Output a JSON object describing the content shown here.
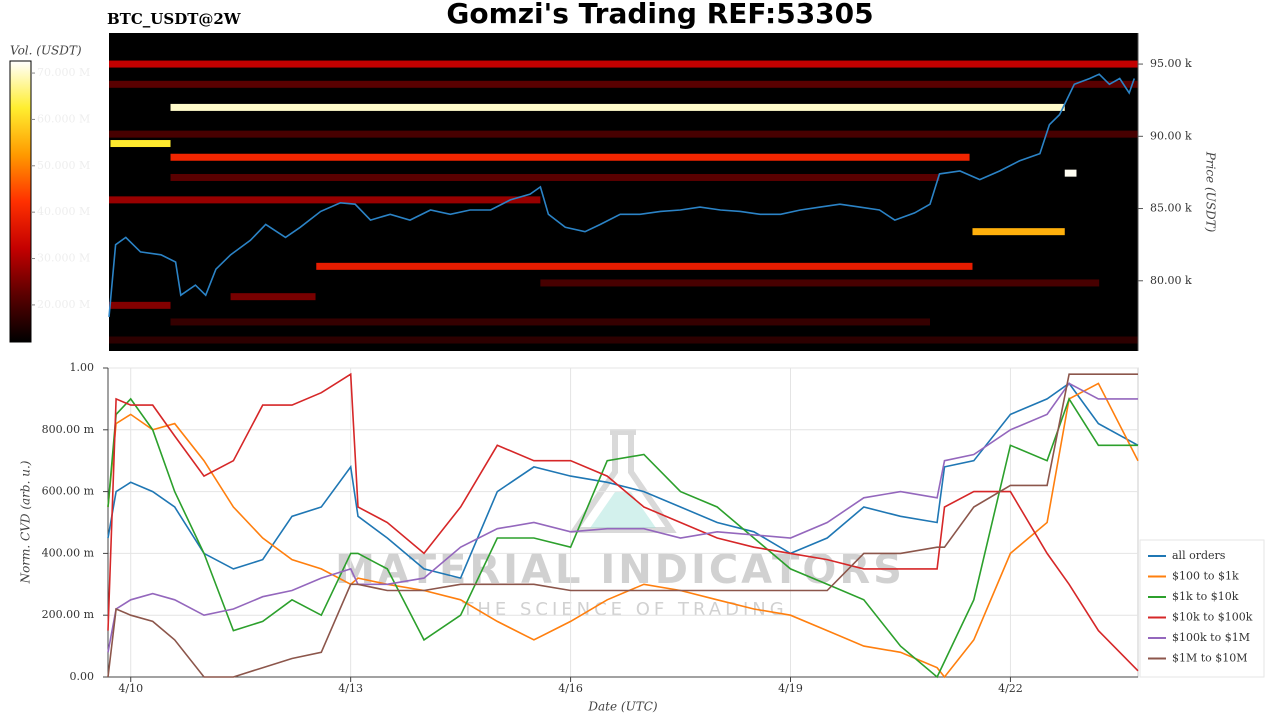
{
  "header": {
    "symbol": "BTC_USDT@2W",
    "title": "Gomzi's Trading REF:53305"
  },
  "watermark": {
    "brand": "MATERIAL INDICATORS",
    "tagline": "THE SCIENCE OF TRADING"
  },
  "chart_data": [
    {
      "type": "heatmap",
      "y_label": "Price (USDT)",
      "xlim": [
        9.69,
        23.74
      ],
      "ylim": [
        75140,
        97150
      ],
      "yticks": [
        {
          "value": 80000,
          "label": "80.00 k"
        },
        {
          "value": 85000,
          "label": "85.00 k"
        },
        {
          "value": 90000,
          "label": "90.00 k"
        },
        {
          "value": 95000,
          "label": "95.00 k"
        }
      ],
      "colorbar": {
        "label": "Vol. (USDT)",
        "clim": [
          12000000,
          72600000
        ],
        "ticks": [
          {
            "value": 20000000,
            "label": "20.000 M"
          },
          {
            "value": 30000000,
            "label": "30.000 M"
          },
          {
            "value": 40000000,
            "label": "40.000 M"
          },
          {
            "value": 50000000,
            "label": "50.000 M"
          },
          {
            "value": 60000000,
            "label": "60.000 M"
          },
          {
            "value": 70000000,
            "label": "70.000 M"
          }
        ],
        "colorscale": [
          "#000000",
          "#5a0000",
          "#c40000",
          "#ff3000",
          "#ff9a00",
          "#ffee30",
          "#ffffff"
        ]
      },
      "bands": [
        {
          "x0": 9.71,
          "x1": 10.53,
          "price": 89500,
          "volume": 62000000
        },
        {
          "x0": 10.53,
          "x1": 22.74,
          "price": 92000,
          "volume": 70000000
        },
        {
          "x0": 10.53,
          "x1": 21.44,
          "price": 88550,
          "volume": 40000000
        },
        {
          "x0": 12.52,
          "x1": 21.48,
          "price": 81000,
          "volume": 38000000
        },
        {
          "x0": 21.48,
          "x1": 22.74,
          "price": 83400,
          "volume": 55000000
        },
        {
          "x0": 22.74,
          "x1": 22.9,
          "price": 87450,
          "volume": 72000000
        },
        {
          "x0": 9.69,
          "x1": 23.74,
          "price": 95000,
          "volume": 32000000
        },
        {
          "x0": 9.69,
          "x1": 23.74,
          "price": 93600,
          "volume": 22000000
        },
        {
          "x0": 9.69,
          "x1": 15.58,
          "price": 85600,
          "volume": 28000000
        },
        {
          "x0": 11.35,
          "x1": 12.51,
          "price": 78900,
          "volume": 25000000
        },
        {
          "x0": 9.69,
          "x1": 10.53,
          "price": 78300,
          "volume": 26000000
        },
        {
          "x0": 9.69,
          "x1": 23.74,
          "price": 90150,
          "volume": 20000000
        },
        {
          "x0": 10.53,
          "x1": 21.03,
          "price": 87150,
          "volume": 22000000
        },
        {
          "x0": 10.53,
          "x1": 20.9,
          "price": 77150,
          "volume": 18000000
        },
        {
          "x0": 9.69,
          "x1": 23.74,
          "price": 75900,
          "volume": 17000000
        },
        {
          "x0": 15.58,
          "x1": 23.21,
          "price": 79850,
          "volume": 20000000
        }
      ],
      "price_line": {
        "color": "#2b83c6",
        "x": [
          9.69,
          9.78,
          9.92,
          10.12,
          10.4,
          10.6,
          10.67,
          10.87,
          11.01,
          11.15,
          11.35,
          11.62,
          11.83,
          12.1,
          12.3,
          12.58,
          12.85,
          13.05,
          13.26,
          13.53,
          13.8,
          14.08,
          14.35,
          14.62,
          14.9,
          15.17,
          15.44,
          15.58,
          15.69,
          15.92,
          16.19,
          16.4,
          16.67,
          16.94,
          17.22,
          17.49,
          17.76,
          18.04,
          18.31,
          18.58,
          18.86,
          19.13,
          19.4,
          19.67,
          19.94,
          20.21,
          20.42,
          20.69,
          20.9,
          21.03,
          21.31,
          21.58,
          21.85,
          22.12,
          22.4,
          22.53,
          22.67,
          22.87,
          23.08,
          23.21,
          23.35,
          23.49,
          23.62,
          23.69
        ],
        "values": [
          77500,
          82500,
          83000,
          82000,
          81800,
          81300,
          79000,
          79700,
          79000,
          80800,
          81800,
          82800,
          83900,
          83000,
          83700,
          84800,
          85400,
          85300,
          84200,
          84600,
          84200,
          84900,
          84600,
          84900,
          84900,
          85600,
          86000,
          86500,
          84600,
          83700,
          83400,
          83900,
          84600,
          84600,
          84800,
          84900,
          85100,
          84900,
          84800,
          84600,
          84600,
          84900,
          85100,
          85300,
          85100,
          84900,
          84200,
          84700,
          85300,
          87400,
          87600,
          87000,
          87600,
          88300,
          88800,
          90800,
          91500,
          93600,
          94000,
          94300,
          93600,
          94000,
          93000,
          94000
        ]
      }
    },
    {
      "type": "line",
      "x_label": "Date (UTC)",
      "y_label": "Norm. CVD (arb. u.)",
      "xlim": [
        9.69,
        23.74
      ],
      "ylim": [
        0,
        1
      ],
      "xticks": [
        {
          "value": 10,
          "label": "4/10"
        },
        {
          "value": 13,
          "label": "4/13"
        },
        {
          "value": 16,
          "label": "4/16"
        },
        {
          "value": 19,
          "label": "4/19"
        },
        {
          "value": 22,
          "label": "4/22"
        }
      ],
      "yticks": [
        {
          "value": 0,
          "label": "0.00"
        },
        {
          "value": 0.2,
          "label": "200.00 m"
        },
        {
          "value": 0.4,
          "label": "400.00 m"
        },
        {
          "value": 0.6,
          "label": "600.00 m"
        },
        {
          "value": 0.8,
          "label": "800.00 m"
        },
        {
          "value": 1,
          "label": "1.00"
        }
      ],
      "grid": true,
      "legend": "lower right",
      "x": [
        9.69,
        9.8,
        10.0,
        10.3,
        10.6,
        11.0,
        11.4,
        11.8,
        12.2,
        12.6,
        13.0,
        13.1,
        13.5,
        14.0,
        14.5,
        15.0,
        15.5,
        16.0,
        16.5,
        17.0,
        17.5,
        18.0,
        18.5,
        19.0,
        19.5,
        20.0,
        20.5,
        21.0,
        21.1,
        21.5,
        22.0,
        22.5,
        22.8,
        23.2,
        23.74
      ],
      "series": [
        {
          "name": "all orders",
          "color": "#1f77b4",
          "values": [
            0.45,
            0.6,
            0.63,
            0.6,
            0.55,
            0.4,
            0.35,
            0.38,
            0.52,
            0.55,
            0.68,
            0.52,
            0.45,
            0.35,
            0.32,
            0.6,
            0.68,
            0.65,
            0.63,
            0.6,
            0.55,
            0.5,
            0.47,
            0.4,
            0.45,
            0.55,
            0.52,
            0.5,
            0.68,
            0.7,
            0.85,
            0.9,
            0.95,
            0.82,
            0.75
          ]
        },
        {
          "name": "$100 to $1k",
          "color": "#ff7f0e",
          "values": [
            0.55,
            0.82,
            0.85,
            0.8,
            0.82,
            0.7,
            0.55,
            0.45,
            0.38,
            0.35,
            0.3,
            0.32,
            0.3,
            0.28,
            0.25,
            0.18,
            0.12,
            0.18,
            0.25,
            0.3,
            0.28,
            0.25,
            0.22,
            0.2,
            0.15,
            0.1,
            0.08,
            0.03,
            0.0,
            0.12,
            0.4,
            0.5,
            0.9,
            0.95,
            0.7
          ]
        },
        {
          "name": "$1k to $10k",
          "color": "#2ca02c",
          "values": [
            0.55,
            0.85,
            0.9,
            0.8,
            0.6,
            0.4,
            0.15,
            0.18,
            0.25,
            0.2,
            0.4,
            0.4,
            0.35,
            0.12,
            0.2,
            0.45,
            0.45,
            0.42,
            0.7,
            0.72,
            0.6,
            0.55,
            0.45,
            0.35,
            0.3,
            0.25,
            0.1,
            0.0,
            0.05,
            0.25,
            0.75,
            0.7,
            0.9,
            0.75,
            0.75
          ]
        },
        {
          "name": "$10k to $100k",
          "color": "#d62728",
          "values": [
            0.15,
            0.9,
            0.88,
            0.88,
            0.78,
            0.65,
            0.7,
            0.88,
            0.88,
            0.92,
            0.98,
            0.55,
            0.5,
            0.4,
            0.55,
            0.75,
            0.7,
            0.7,
            0.65,
            0.55,
            0.5,
            0.45,
            0.42,
            0.4,
            0.38,
            0.35,
            0.35,
            0.35,
            0.55,
            0.6,
            0.6,
            0.4,
            0.3,
            0.15,
            0.02
          ]
        },
        {
          "name": "$100k to $1M",
          "color": "#9467bd",
          "values": [
            0.08,
            0.22,
            0.25,
            0.27,
            0.25,
            0.2,
            0.22,
            0.26,
            0.28,
            0.32,
            0.35,
            0.3,
            0.3,
            0.32,
            0.42,
            0.48,
            0.5,
            0.47,
            0.48,
            0.48,
            0.45,
            0.47,
            0.46,
            0.45,
            0.5,
            0.58,
            0.6,
            0.58,
            0.7,
            0.72,
            0.8,
            0.85,
            0.95,
            0.9,
            0.9
          ]
        },
        {
          "name": "$1M to $10M",
          "color": "#8c564b",
          "values": [
            0.0,
            0.22,
            0.2,
            0.18,
            0.12,
            0.0,
            0.0,
            0.03,
            0.06,
            0.08,
            0.3,
            0.3,
            0.28,
            0.28,
            0.3,
            0.3,
            0.3,
            0.28,
            0.28,
            0.28,
            0.28,
            0.28,
            0.28,
            0.28,
            0.28,
            0.4,
            0.4,
            0.42,
            0.42,
            0.55,
            0.62,
            0.62,
            0.98,
            0.98,
            0.98
          ]
        }
      ]
    }
  ]
}
